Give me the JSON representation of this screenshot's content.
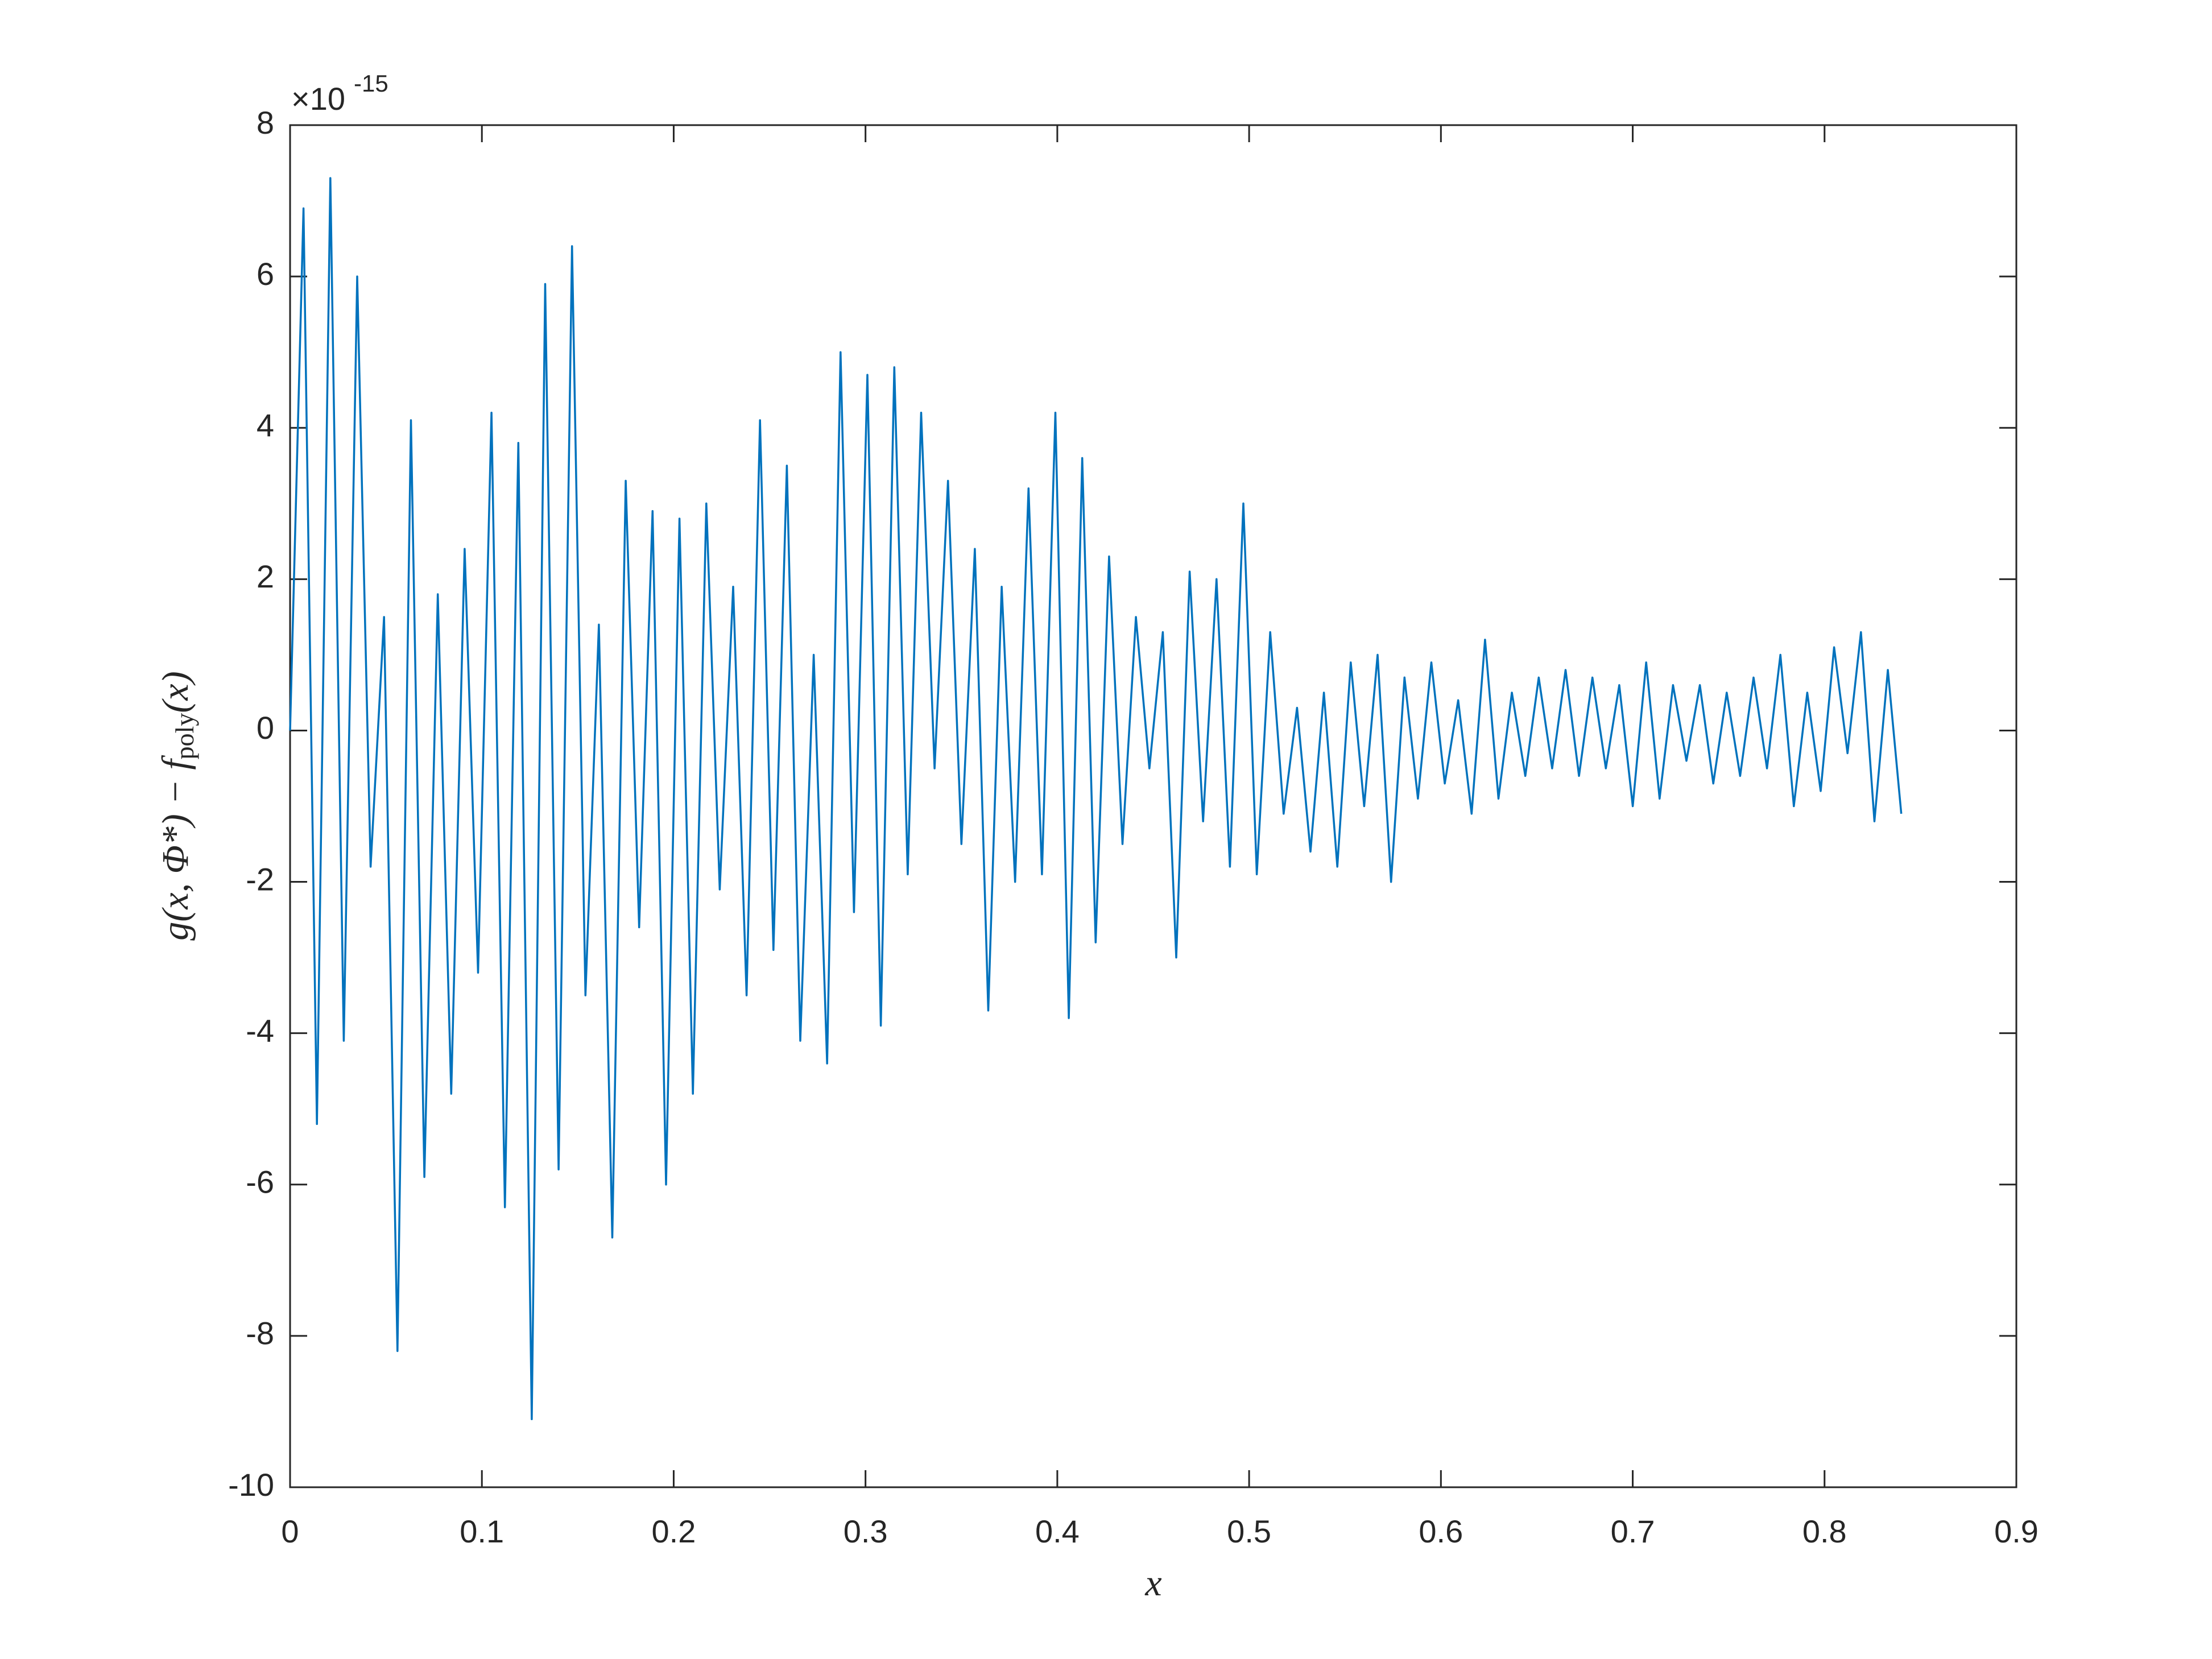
{
  "chart_data": {
    "type": "line",
    "xlabel": "x",
    "ylabel": {
      "main": "g(x, Φ*) − f",
      "sub": "poly",
      "tail": "(x)"
    },
    "y_exponent_base": "×10",
    "y_exponent": "-15",
    "xlim": [
      0,
      0.9
    ],
    "xticks": [
      0,
      0.1,
      0.2,
      0.3,
      0.4,
      0.5,
      0.6,
      0.7,
      0.8,
      0.9
    ],
    "ylim": [
      -10,
      8
    ],
    "yticks": [
      -10,
      -8,
      -6,
      -4,
      -2,
      0,
      2,
      4,
      6,
      8
    ],
    "grid": false,
    "series": [
      {
        "color": "#0072bd",
        "x": [
          0,
          0.007,
          0.014,
          0.021,
          0.028,
          0.035,
          0.042,
          0.049,
          0.056,
          0.063,
          0.07,
          0.077,
          0.084,
          0.091,
          0.098,
          0.105,
          0.112,
          0.119,
          0.126,
          0.133,
          0.14,
          0.147,
          0.154,
          0.161,
          0.168,
          0.175,
          0.182,
          0.189,
          0.196,
          0.203,
          0.21,
          0.217,
          0.224,
          0.231,
          0.238,
          0.245,
          0.252,
          0.259,
          0.266,
          0.273,
          0.28,
          0.287,
          0.294,
          0.301,
          0.308,
          0.315,
          0.322,
          0.329,
          0.336,
          0.343,
          0.35,
          0.357,
          0.364,
          0.371,
          0.378,
          0.385,
          0.392,
          0.399,
          0.406,
          0.413,
          0.42,
          0.427,
          0.434,
          0.441,
          0.448,
          0.455,
          0.462,
          0.469,
          0.476,
          0.483,
          0.49,
          0.497,
          0.504,
          0.511,
          0.518,
          0.525,
          0.532,
          0.539,
          0.546,
          0.553,
          0.56,
          0.567,
          0.574,
          0.581,
          0.588,
          0.595,
          0.602,
          0.609,
          0.616,
          0.623,
          0.63,
          0.637,
          0.644,
          0.651,
          0.658,
          0.665,
          0.672,
          0.679,
          0.686,
          0.693,
          0.7,
          0.707,
          0.714,
          0.721,
          0.728,
          0.735,
          0.742,
          0.749,
          0.756,
          0.763,
          0.77,
          0.777,
          0.784,
          0.791,
          0.798,
          0.805,
          0.812,
          0.819,
          0.826,
          0.833,
          0.84
        ],
        "values": [
          0,
          6.9,
          -5.2,
          7.3,
          -4.1,
          6.0,
          -1.8,
          1.5,
          -8.2,
          4.1,
          -5.9,
          1.8,
          -4.8,
          2.4,
          -3.2,
          4.2,
          -6.3,
          3.8,
          -9.1,
          5.9,
          -5.8,
          6.4,
          -3.5,
          1.4,
          -6.7,
          3.3,
          -2.6,
          2.9,
          -6.0,
          2.8,
          -4.8,
          3.0,
          -2.1,
          1.9,
          -3.5,
          4.1,
          -2.9,
          3.5,
          -4.1,
          1.0,
          -4.4,
          5.0,
          -2.4,
          4.7,
          -3.9,
          4.8,
          -1.9,
          4.2,
          -0.5,
          3.3,
          -1.5,
          2.4,
          -3.7,
          1.9,
          -2.0,
          3.2,
          -1.9,
          4.2,
          -3.8,
          3.6,
          -2.8,
          2.3,
          -1.5,
          1.5,
          -0.5,
          1.3,
          -3.0,
          2.1,
          -1.2,
          2.0,
          -1.8,
          3.0,
          -1.9,
          1.3,
          -1.1,
          0.3,
          -1.6,
          0.5,
          -1.8,
          0.9,
          -1.0,
          1.0,
          -2.0,
          0.7,
          -0.9,
          0.9,
          -0.7,
          0.4,
          -1.1,
          1.2,
          -0.9,
          0.5,
          -0.6,
          0.7,
          -0.5,
          0.8,
          -0.6,
          0.7,
          -0.5,
          0.6,
          -1.0,
          0.9,
          -0.9,
          0.6,
          -0.4,
          0.6,
          -0.7,
          0.5,
          -0.6,
          0.7,
          -0.5,
          1.0,
          -1.0,
          0.5,
          -0.8,
          1.1,
          -0.3,
          1.3,
          -1.2,
          0.8,
          -1.1
        ]
      }
    ]
  }
}
